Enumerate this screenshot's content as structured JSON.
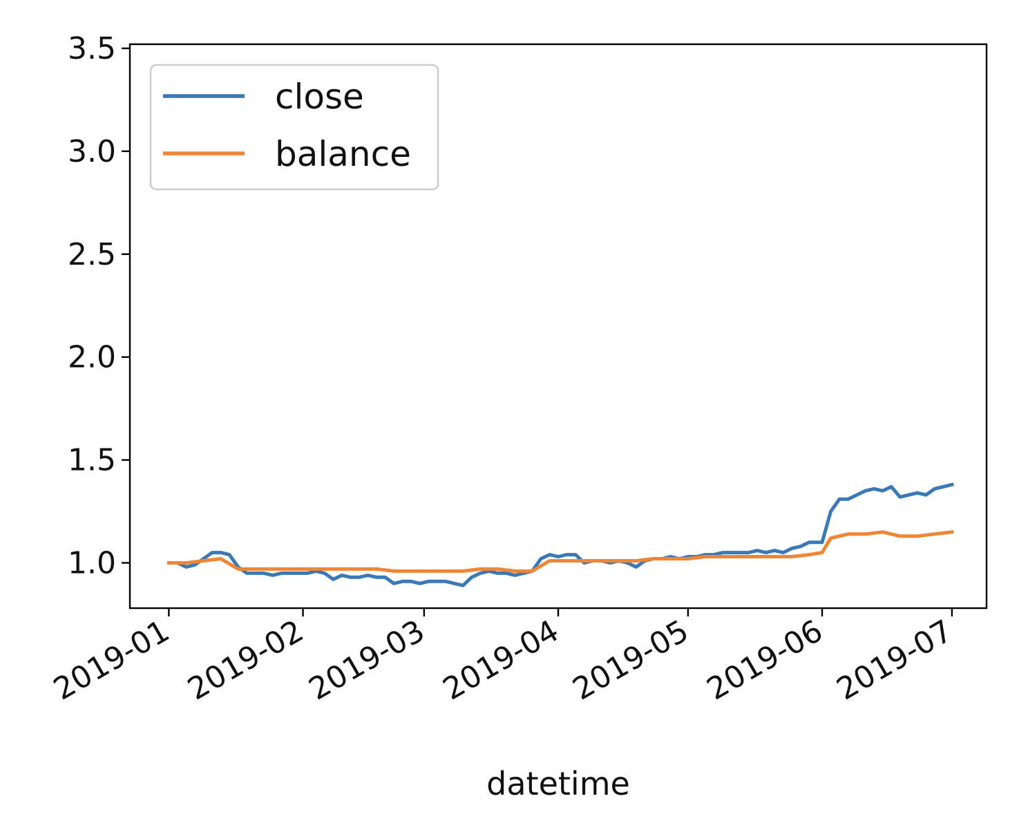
{
  "chart_data": {
    "type": "line",
    "title": "",
    "xlabel": "datetime",
    "ylabel": "",
    "x_axis_kind": "date",
    "xlim": [
      "2018-12-23",
      "2019-07-09"
    ],
    "ylim": [
      0.78,
      3.52
    ],
    "xticks": [
      "2019-01-01",
      "2019-02-01",
      "2019-03-01",
      "2019-04-01",
      "2019-05-01",
      "2019-06-01",
      "2019-07-01"
    ],
    "xtick_labels": [
      "2019-01",
      "2019-02",
      "2019-03",
      "2019-04",
      "2019-05",
      "2019-06",
      "2019-07"
    ],
    "yticks": [
      1.0,
      1.5,
      2.0,
      2.5,
      3.0,
      3.5
    ],
    "ytick_labels": [
      "1.0",
      "1.5",
      "2.0",
      "2.5",
      "3.0",
      "3.5"
    ],
    "grid": false,
    "legend": {
      "position": "upper-left"
    },
    "series": [
      {
        "name": "close",
        "color": "#3a79b6",
        "points": [
          [
            "2019-01-01",
            1.0
          ],
          [
            "2019-01-03",
            1.0
          ],
          [
            "2019-01-05",
            0.98
          ],
          [
            "2019-01-07",
            0.99
          ],
          [
            "2019-01-09",
            1.02
          ],
          [
            "2019-01-11",
            1.05
          ],
          [
            "2019-01-13",
            1.05
          ],
          [
            "2019-01-15",
            1.04
          ],
          [
            "2019-01-17",
            0.98
          ],
          [
            "2019-01-19",
            0.95
          ],
          [
            "2019-01-21",
            0.95
          ],
          [
            "2019-01-23",
            0.95
          ],
          [
            "2019-01-25",
            0.94
          ],
          [
            "2019-01-27",
            0.95
          ],
          [
            "2019-01-29",
            0.95
          ],
          [
            "2019-01-31",
            0.95
          ],
          [
            "2019-02-02",
            0.95
          ],
          [
            "2019-02-04",
            0.96
          ],
          [
            "2019-02-06",
            0.95
          ],
          [
            "2019-02-08",
            0.92
          ],
          [
            "2019-02-10",
            0.94
          ],
          [
            "2019-02-12",
            0.93
          ],
          [
            "2019-02-14",
            0.93
          ],
          [
            "2019-02-16",
            0.94
          ],
          [
            "2019-02-18",
            0.93
          ],
          [
            "2019-02-20",
            0.93
          ],
          [
            "2019-02-22",
            0.9
          ],
          [
            "2019-02-24",
            0.91
          ],
          [
            "2019-02-26",
            0.91
          ],
          [
            "2019-02-28",
            0.9
          ],
          [
            "2019-03-02",
            0.91
          ],
          [
            "2019-03-04",
            0.91
          ],
          [
            "2019-03-06",
            0.91
          ],
          [
            "2019-03-08",
            0.9
          ],
          [
            "2019-03-10",
            0.89
          ],
          [
            "2019-03-12",
            0.93
          ],
          [
            "2019-03-14",
            0.95
          ],
          [
            "2019-03-16",
            0.96
          ],
          [
            "2019-03-18",
            0.95
          ],
          [
            "2019-03-20",
            0.95
          ],
          [
            "2019-03-22",
            0.94
          ],
          [
            "2019-03-24",
            0.95
          ],
          [
            "2019-03-26",
            0.96
          ],
          [
            "2019-03-28",
            1.02
          ],
          [
            "2019-03-30",
            1.04
          ],
          [
            "2019-04-01",
            1.03
          ],
          [
            "2019-04-03",
            1.04
          ],
          [
            "2019-04-05",
            1.04
          ],
          [
            "2019-04-07",
            1.0
          ],
          [
            "2019-04-09",
            1.01
          ],
          [
            "2019-04-11",
            1.01
          ],
          [
            "2019-04-13",
            1.0
          ],
          [
            "2019-04-15",
            1.01
          ],
          [
            "2019-04-17",
            1.0
          ],
          [
            "2019-04-19",
            0.98
          ],
          [
            "2019-04-21",
            1.01
          ],
          [
            "2019-04-23",
            1.02
          ],
          [
            "2019-04-25",
            1.02
          ],
          [
            "2019-04-27",
            1.03
          ],
          [
            "2019-04-29",
            1.02
          ],
          [
            "2019-05-01",
            1.03
          ],
          [
            "2019-05-03",
            1.03
          ],
          [
            "2019-05-05",
            1.04
          ],
          [
            "2019-05-07",
            1.04
          ],
          [
            "2019-05-09",
            1.05
          ],
          [
            "2019-05-11",
            1.05
          ],
          [
            "2019-05-13",
            1.05
          ],
          [
            "2019-05-15",
            1.05
          ],
          [
            "2019-05-17",
            1.06
          ],
          [
            "2019-05-19",
            1.05
          ],
          [
            "2019-05-21",
            1.06
          ],
          [
            "2019-05-23",
            1.05
          ],
          [
            "2019-05-25",
            1.07
          ],
          [
            "2019-05-27",
            1.08
          ],
          [
            "2019-05-29",
            1.1
          ],
          [
            "2019-06-01",
            1.1
          ],
          [
            "2019-06-03",
            1.25
          ],
          [
            "2019-06-05",
            1.31
          ],
          [
            "2019-06-07",
            1.31
          ],
          [
            "2019-06-09",
            1.33
          ],
          [
            "2019-06-11",
            1.35
          ],
          [
            "2019-06-13",
            1.36
          ],
          [
            "2019-06-15",
            1.35
          ],
          [
            "2019-06-17",
            1.37
          ],
          [
            "2019-06-19",
            1.32
          ],
          [
            "2019-06-21",
            1.33
          ],
          [
            "2019-06-23",
            1.34
          ],
          [
            "2019-06-25",
            1.33
          ],
          [
            "2019-06-27",
            1.36
          ],
          [
            "2019-06-29",
            1.37
          ],
          [
            "2019-07-01",
            1.38
          ]
        ]
      },
      {
        "name": "balance",
        "color": "#ef8636",
        "points": [
          [
            "2019-01-01",
            1.0
          ],
          [
            "2019-01-05",
            1.0
          ],
          [
            "2019-01-09",
            1.01
          ],
          [
            "2019-01-13",
            1.02
          ],
          [
            "2019-01-17",
            0.97
          ],
          [
            "2019-01-21",
            0.97
          ],
          [
            "2019-01-25",
            0.97
          ],
          [
            "2019-01-29",
            0.97
          ],
          [
            "2019-02-02",
            0.97
          ],
          [
            "2019-02-06",
            0.97
          ],
          [
            "2019-02-10",
            0.97
          ],
          [
            "2019-02-14",
            0.97
          ],
          [
            "2019-02-18",
            0.97
          ],
          [
            "2019-02-22",
            0.96
          ],
          [
            "2019-02-26",
            0.96
          ],
          [
            "2019-03-02",
            0.96
          ],
          [
            "2019-03-06",
            0.96
          ],
          [
            "2019-03-10",
            0.96
          ],
          [
            "2019-03-14",
            0.97
          ],
          [
            "2019-03-18",
            0.97
          ],
          [
            "2019-03-22",
            0.96
          ],
          [
            "2019-03-26",
            0.96
          ],
          [
            "2019-03-30",
            1.01
          ],
          [
            "2019-04-03",
            1.01
          ],
          [
            "2019-04-07",
            1.01
          ],
          [
            "2019-04-11",
            1.01
          ],
          [
            "2019-04-15",
            1.01
          ],
          [
            "2019-04-19",
            1.01
          ],
          [
            "2019-04-23",
            1.02
          ],
          [
            "2019-04-27",
            1.02
          ],
          [
            "2019-05-01",
            1.02
          ],
          [
            "2019-05-05",
            1.03
          ],
          [
            "2019-05-09",
            1.03
          ],
          [
            "2019-05-13",
            1.03
          ],
          [
            "2019-05-17",
            1.03
          ],
          [
            "2019-05-21",
            1.03
          ],
          [
            "2019-05-25",
            1.03
          ],
          [
            "2019-05-29",
            1.04
          ],
          [
            "2019-06-01",
            1.05
          ],
          [
            "2019-06-03",
            1.12
          ],
          [
            "2019-06-07",
            1.14
          ],
          [
            "2019-06-11",
            1.14
          ],
          [
            "2019-06-15",
            1.15
          ],
          [
            "2019-06-19",
            1.13
          ],
          [
            "2019-06-23",
            1.13
          ],
          [
            "2019-06-27",
            1.14
          ],
          [
            "2019-07-01",
            1.15
          ]
        ]
      }
    ]
  }
}
